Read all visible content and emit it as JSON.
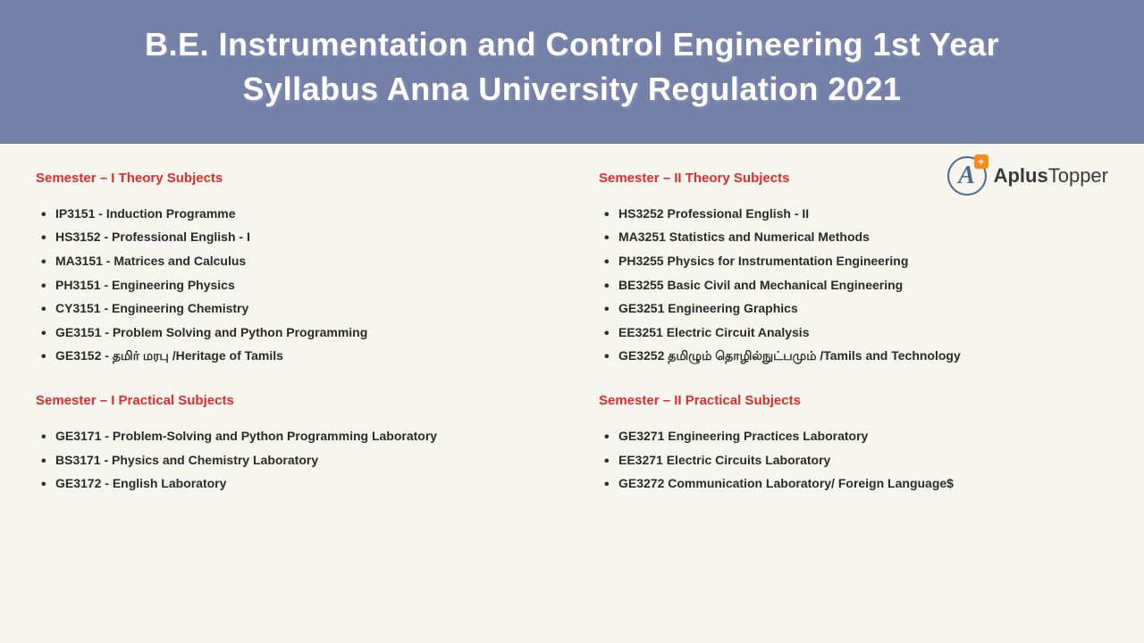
{
  "header": {
    "title_line1": "B.E. Instrumentation and Control Engineering 1st Year",
    "title_line2": "Syllabus Anna University Regulation 2021"
  },
  "colors": {
    "header_bg": "#7580a8",
    "body_bg": "#f8f5ef",
    "section_header": "#d92e2e",
    "list_text": "#2a2a2a",
    "title_text": "#ffffff"
  },
  "logo": {
    "letter": "A",
    "plus": "+",
    "text_bold": "Aplus",
    "text_normal": "Topper"
  },
  "semester1": {
    "theory_header": "Semester – I Theory Subjects",
    "theory_items": [
      "IP3151 - Induction Programme",
      "HS3152 - Professional English - I",
      "MA3151 - Matrices and Calculus",
      "PH3151 - Engineering Physics",
      "CY3151 - Engineering Chemistry",
      "GE3151 - Problem Solving and Python Programming",
      "GE3152 - தமிர் மரபு /Heritage of Tamils"
    ],
    "practical_header": "Semester – I Practical Subjects",
    "practical_items": [
      "GE3171 - Problem-Solving and Python Programming Laboratory",
      "BS3171 - Physics and Chemistry Laboratory",
      "GE3172 - English Laboratory"
    ]
  },
  "semester2": {
    "theory_header": "Semester – II Theory Subjects",
    "theory_items": [
      "HS3252 Professional English - II",
      "MA3251 Statistics and Numerical Methods",
      "PH3255 Physics for Instrumentation Engineering",
      "BE3255 Basic Civil and Mechanical Engineering",
      "GE3251 Engineering Graphics",
      "EE3251 Electric Circuit Analysis",
      "GE3252 தமிழும் தொழில்நுட்பமும் /Tamils and Technology"
    ],
    "practical_header": "Semester – II Practical Subjects",
    "practical_items": [
      "GE3271 Engineering Practices Laboratory",
      "EE3271 Electric Circuits Laboratory",
      "GE3272 Communication Laboratory/ Foreign Language$"
    ]
  }
}
